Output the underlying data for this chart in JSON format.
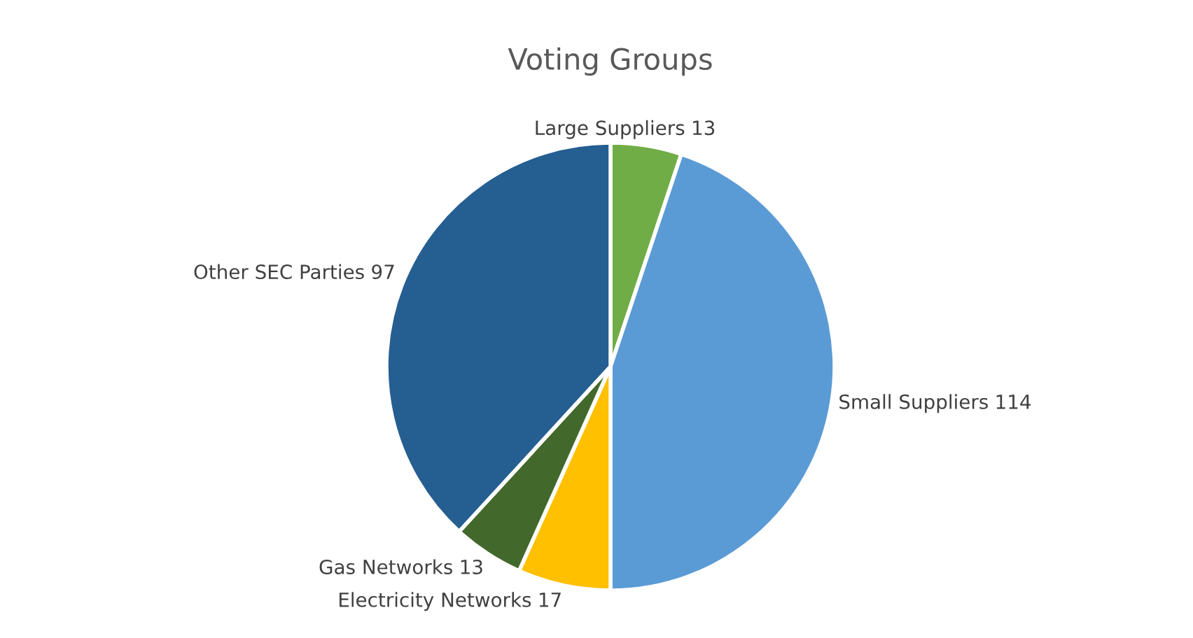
{
  "chart_data": {
    "type": "pie",
    "title": "Voting Groups",
    "categories": [
      "Large Suppliers",
      "Small Suppliers",
      "Electricity Networks",
      "Gas Networks",
      "Other SEC Parties"
    ],
    "values": [
      13,
      114,
      17,
      13,
      97
    ],
    "colors": [
      "#70ad47",
      "#5b9bd5",
      "#ffc000",
      "#43682b",
      "#255e91"
    ],
    "data_labels": true,
    "legend": false
  }
}
